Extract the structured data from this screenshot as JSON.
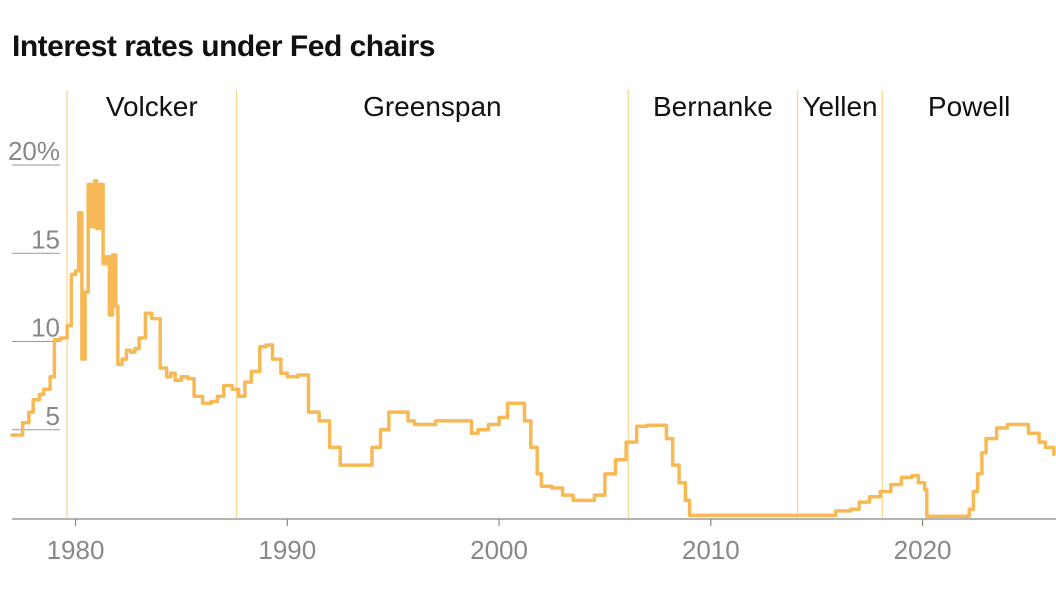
{
  "chart_data": {
    "type": "line",
    "title": "Interest rates under Fed chairs",
    "xlim": [
      1977,
      2026.3
    ],
    "ylim": [
      0,
      20
    ],
    "y_unit_label": "20%",
    "yticks": [
      {
        "value": 20,
        "label": "20%"
      },
      {
        "value": 15,
        "label": "15"
      },
      {
        "value": 10,
        "label": "10"
      },
      {
        "value": 5,
        "label": "5"
      }
    ],
    "xticks": [
      {
        "value": 1980,
        "label": "1980"
      },
      {
        "value": 1990,
        "label": "1990"
      },
      {
        "value": 2000,
        "label": "2000"
      },
      {
        "value": 2010,
        "label": "2010"
      },
      {
        "value": 2020,
        "label": "2020"
      }
    ],
    "line_color": "#f7b955",
    "divider_color": "#f9d48a",
    "eras": [
      {
        "name": "Volcker",
        "start": 1979.6,
        "end": 1987.6
      },
      {
        "name": "Greenspan",
        "start": 1987.6,
        "end": 2006.1
      },
      {
        "name": "Bernanke",
        "start": 2006.1,
        "end": 2014.1
      },
      {
        "name": "Yellen",
        "start": 2014.1,
        "end": 2018.1
      },
      {
        "name": "Powell",
        "start": 2018.1,
        "end": 2026.3
      }
    ],
    "series": [
      {
        "x": [
          1977.0,
          1977.3,
          1977.5,
          1977.8,
          1978.0,
          1978.3,
          1978.5,
          1978.8,
          1979.0,
          1979.3,
          1979.6,
          1979.8,
          1980.0,
          1980.15,
          1980.3,
          1980.45,
          1980.6,
          1980.75,
          1980.9,
          1981.0,
          1981.15,
          1981.3,
          1981.45,
          1981.6,
          1981.75,
          1981.9,
          1982.0,
          1982.2,
          1982.4,
          1982.6,
          1982.8,
          1983.0,
          1983.3,
          1983.6,
          1984.0,
          1984.3,
          1984.5,
          1984.7,
          1985.0,
          1985.3,
          1985.6,
          1986.0,
          1986.4,
          1986.7,
          1987.0,
          1987.4,
          1987.7,
          1988.0,
          1988.3,
          1988.7,
          1989.0,
          1989.3,
          1989.7,
          1990.0,
          1990.5,
          1991.0,
          1991.5,
          1992.0,
          1992.5,
          1993.0,
          1993.5,
          1994.0,
          1994.4,
          1994.8,
          1995.2,
          1995.7,
          1996.0,
          1996.5,
          1997.0,
          1997.5,
          1998.0,
          1998.7,
          1999.0,
          1999.5,
          2000.0,
          2000.4,
          2000.9,
          2001.2,
          2001.5,
          2001.8,
          2002.0,
          2002.5,
          2003.0,
          2003.5,
          2004.0,
          2004.5,
          2005.0,
          2005.5,
          2006.0,
          2006.5,
          2007.0,
          2007.6,
          2007.9,
          2008.2,
          2008.5,
          2008.8,
          2009.0,
          2012.0,
          2015.0,
          2015.9,
          2016.6,
          2017.0,
          2017.5,
          2018.0,
          2018.5,
          2019.0,
          2019.5,
          2019.8,
          2020.1,
          2020.2,
          2021.0,
          2022.0,
          2022.2,
          2022.4,
          2022.6,
          2022.8,
          2023.0,
          2023.5,
          2024.0,
          2024.5,
          2024.8,
          2025.0,
          2025.5,
          2025.8,
          2026.2
        ],
        "y": [
          4.7,
          4.7,
          5.4,
          6.0,
          6.7,
          7.0,
          7.3,
          8.0,
          10.1,
          10.2,
          10.9,
          13.8,
          14.0,
          17.3,
          9.0,
          12.8,
          18.9,
          16.5,
          19.1,
          16.4,
          18.9,
          14.4,
          14.8,
          11.5,
          14.9,
          12.0,
          8.7,
          9.0,
          9.5,
          9.4,
          9.6,
          10.2,
          11.6,
          11.3,
          8.5,
          8.0,
          8.2,
          7.8,
          8.0,
          7.9,
          6.9,
          6.5,
          6.6,
          6.9,
          7.5,
          7.3,
          6.9,
          7.7,
          8.3,
          9.7,
          9.8,
          9.0,
          8.2,
          8.0,
          8.1,
          6.0,
          5.5,
          4.0,
          3.0,
          3.0,
          3.0,
          4.0,
          5.0,
          6.0,
          6.0,
          5.5,
          5.3,
          5.3,
          5.5,
          5.5,
          5.5,
          4.8,
          5.0,
          5.3,
          5.7,
          6.5,
          6.5,
          5.5,
          4.0,
          2.5,
          1.8,
          1.7,
          1.3,
          1.0,
          1.0,
          1.3,
          2.5,
          3.3,
          4.3,
          5.2,
          5.25,
          5.25,
          4.5,
          3.0,
          2.0,
          1.0,
          0.15,
          0.15,
          0.15,
          0.4,
          0.5,
          0.9,
          1.2,
          1.5,
          1.9,
          2.3,
          2.4,
          2.0,
          1.6,
          0.1,
          0.1,
          0.1,
          0.5,
          1.5,
          2.5,
          3.7,
          4.5,
          5.1,
          5.3,
          5.3,
          5.3,
          4.8,
          4.3,
          4.0,
          3.6
        ]
      }
    ]
  }
}
